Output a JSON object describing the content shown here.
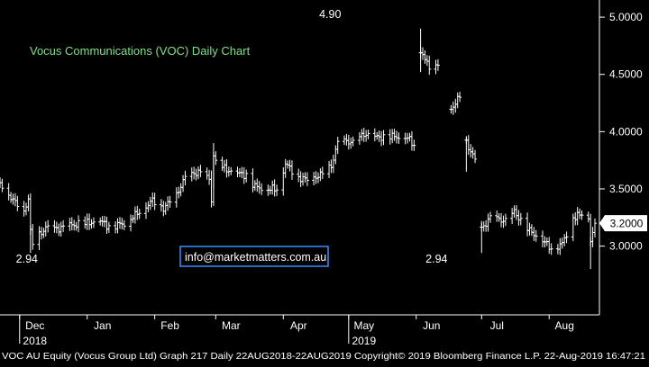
{
  "chart_data": {
    "type": "bar",
    "style": "ohlc",
    "title": "Vocus Communications (VOC) Daily Chart",
    "colors": {
      "background": "#000000",
      "bars": "#ffffff",
      "title": "#7ee08a",
      "callout_text": "#ffffff",
      "watermark_border": "#3a8cff",
      "price_tag_bg": "#ffffff",
      "price_tag_text": "#000000"
    },
    "ylim": [
      2.4,
      5.15
    ],
    "y_ticks": [
      "3.0000",
      "3.5000",
      "4.0000",
      "4.5000",
      "5.0000"
    ],
    "y_tick_values": [
      3.0,
      3.5,
      4.0,
      4.5,
      5.0
    ],
    "x_ticks": [
      "Dec",
      "Jan",
      "Feb",
      "Mar",
      "Apr",
      "May",
      "Jun",
      "Jul",
      "Aug"
    ],
    "x_tick_dates": [
      "2018-12-01",
      "2019-01-01",
      "2019-02-01",
      "2019-03-01",
      "2019-04-01",
      "2019-05-01",
      "2019-06-01",
      "2019-07-01",
      "2019-08-01"
    ],
    "x_start": "2018-11-22",
    "x_end": "2019-08-22",
    "year_labels": [
      {
        "label": "2018",
        "date": "2018-12-01"
      },
      {
        "label": "2019",
        "date": "2019-05-01"
      }
    ],
    "annotations": [
      {
        "text": "4.90",
        "date": "2019-05-14",
        "value": 4.9
      },
      {
        "text": "2.94",
        "date": "2018-12-06",
        "value": 2.94
      },
      {
        "text": "2.94",
        "date": "2019-06-12",
        "value": 2.94
      }
    ],
    "last_price": {
      "text": "3.2000",
      "value": 3.2
    },
    "series_anchors": [
      [
        "2018-11-22",
        3.55
      ],
      [
        "2018-11-26",
        3.45
      ],
      [
        "2018-11-29",
        3.38
      ],
      [
        "2018-12-03",
        3.3
      ],
      [
        "2018-12-05",
        3.42
      ],
      [
        "2018-12-06",
        3.12
      ],
      [
        "2018-12-07",
        3.02
      ],
      [
        "2018-12-10",
        3.1
      ],
      [
        "2018-12-13",
        3.16
      ],
      [
        "2018-12-18",
        3.15
      ],
      [
        "2018-12-24",
        3.18
      ],
      [
        "2018-12-31",
        3.2
      ],
      [
        "2019-01-07",
        3.22
      ],
      [
        "2019-01-11",
        3.17
      ],
      [
        "2019-01-18",
        3.2
      ],
      [
        "2019-01-25",
        3.3
      ],
      [
        "2019-01-31",
        3.4
      ],
      [
        "2019-02-05",
        3.33
      ],
      [
        "2019-02-11",
        3.45
      ],
      [
        "2019-02-15",
        3.6
      ],
      [
        "2019-02-21",
        3.65
      ],
      [
        "2019-02-26",
        3.58
      ],
      [
        "2019-02-27",
        3.4
      ],
      [
        "2019-02-28",
        3.8
      ],
      [
        "2019-03-01",
        3.72
      ],
      [
        "2019-03-08",
        3.65
      ],
      [
        "2019-03-15",
        3.62
      ],
      [
        "2019-03-19",
        3.52
      ],
      [
        "2019-03-25",
        3.5
      ],
      [
        "2019-03-29",
        3.5
      ],
      [
        "2019-04-02",
        3.72
      ],
      [
        "2019-04-08",
        3.6
      ],
      [
        "2019-04-12",
        3.58
      ],
      [
        "2019-04-18",
        3.62
      ],
      [
        "2019-04-23",
        3.7
      ],
      [
        "2019-04-26",
        3.9
      ],
      [
        "2019-04-30",
        3.92
      ],
      [
        "2019-05-03",
        3.9
      ],
      [
        "2019-05-08",
        3.98
      ],
      [
        "2019-05-14",
        3.95
      ],
      [
        "2019-05-20",
        3.96
      ],
      [
        "2019-05-28",
        3.95
      ],
      [
        "2019-05-31",
        3.88
      ]
    ],
    "series_segments": [
      [
        [
          "2019-06-03",
          4.72
        ],
        [
          "2019-06-05",
          4.62
        ],
        [
          "2019-06-07",
          4.58
        ],
        [
          "2019-06-11",
          4.58
        ]
      ],
      [
        [
          "2019-06-17",
          4.2
        ],
        [
          "2019-06-21",
          4.3
        ]
      ],
      [
        [
          "2019-06-24",
          3.9
        ],
        [
          "2019-06-28",
          3.76
        ]
      ],
      [
        [
          "2019-07-01",
          3.15
        ],
        [
          "2019-07-05",
          3.25
        ],
        [
          "2019-07-12",
          3.22
        ],
        [
          "2019-07-16",
          3.3
        ],
        [
          "2019-07-22",
          3.15
        ],
        [
          "2019-07-29",
          3.05
        ],
        [
          "2019-08-02",
          2.98
        ],
        [
          "2019-08-07",
          3.02
        ],
        [
          "2019-08-12",
          3.25
        ],
        [
          "2019-08-16",
          3.28
        ],
        [
          "2019-08-19",
          3.25
        ],
        [
          "2019-08-20",
          3.05
        ],
        [
          "2019-08-22",
          3.2
        ]
      ]
    ]
  },
  "labels": {
    "title": "Vocus Communications (VOC) Daily Chart",
    "watermark": "info@marketmatters.com.au",
    "footer": "VOC AU Equity (Vocus Group Ltd) Graph 217  Daily 22AUG2018-22AUG2019 Copyright© 2019 Bloomberg Finance L.P. 22-Aug-2019 16:47:21"
  }
}
